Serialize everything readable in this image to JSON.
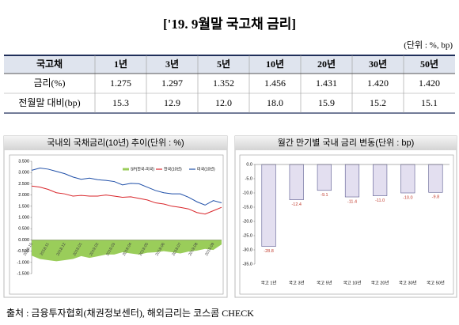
{
  "title": "['19. 9월말 국고채 금리]",
  "unit_note": "(단위 : %, bp)",
  "table": {
    "header": [
      "국고채",
      "1년",
      "3년",
      "5년",
      "10년",
      "20년",
      "30년",
      "50년"
    ],
    "rows": [
      [
        "금리(%)",
        "1.275",
        "1.297",
        "1.352",
        "1.456",
        "1.431",
        "1.420",
        "1.420"
      ],
      [
        "전월말 대비(bp)",
        "15.3",
        "12.9",
        "12.0",
        "18.0",
        "15.9",
        "15.2",
        "15.1"
      ]
    ]
  },
  "chart_data": [
    {
      "type": "line",
      "title": "국내외 국채금리(10년) 추이(단위 : %)",
      "categories": [
        "2018.10",
        null,
        "2018.11",
        null,
        "2018.12",
        null,
        "2019.01",
        null,
        "2019.02",
        null,
        "2019.03",
        null,
        "2019.04",
        null,
        "2019.05",
        null,
        "2019.06",
        null,
        "2019.07",
        null,
        "2019.08",
        null,
        "2019.09",
        null
      ],
      "series": [
        {
          "name": "SP(한국-미국)",
          "color": "#9acd5a",
          "fill": true,
          "values": [
            -0.7,
            -0.85,
            -0.9,
            -0.95,
            -0.9,
            -0.85,
            -0.72,
            -0.8,
            -0.73,
            -0.65,
            -0.65,
            -0.55,
            -0.6,
            -0.65,
            -0.57,
            -0.55,
            -0.5,
            -0.55,
            -0.6,
            -0.52,
            -0.48,
            -0.4,
            -0.45,
            -0.2
          ]
        },
        {
          "name": "한국(10년)",
          "color": "#d9262b",
          "values": [
            2.4,
            2.35,
            2.25,
            2.1,
            2.05,
            1.95,
            1.98,
            1.95,
            1.95,
            2.0,
            1.95,
            1.9,
            1.92,
            1.85,
            1.78,
            1.65,
            1.6,
            1.5,
            1.45,
            1.38,
            1.22,
            1.15,
            1.3,
            1.45
          ]
        },
        {
          "name": "미국(10년)",
          "color": "#1f4fa8",
          "values": [
            3.1,
            3.2,
            3.15,
            3.05,
            2.95,
            2.8,
            2.7,
            2.75,
            2.68,
            2.65,
            2.6,
            2.45,
            2.52,
            2.5,
            2.35,
            2.2,
            2.1,
            2.05,
            2.05,
            1.9,
            1.7,
            1.55,
            1.75,
            1.65
          ]
        }
      ],
      "ylim": [
        -1.5,
        3.5
      ],
      "yticks": [
        {
          "value": 3.5,
          "label": "3.500"
        },
        {
          "value": 3,
          "label": "3.000"
        },
        {
          "value": 2.5,
          "label": "2.500"
        },
        {
          "value": 2,
          "label": "2.000"
        },
        {
          "value": 1.5,
          "label": "1.500"
        },
        {
          "value": 1,
          "label": "1.000"
        },
        {
          "value": 0.5,
          "label": "0.500"
        },
        {
          "value": 0,
          "label": "0.000"
        },
        {
          "value": -0.5,
          "label": "-0.500"
        },
        {
          "value": -1,
          "label": "-1.000"
        },
        {
          "value": -1.5,
          "label": "-1.500"
        }
      ],
      "legend": "top-right"
    },
    {
      "type": "bar",
      "title": "월간 만기별 국내 금리 변동(단위 : bp)",
      "categories": [
        "국고 1년",
        "국고 3년",
        "국고 5년",
        "국고 10년",
        "국고 20년",
        "국고 30년",
        "국고 50년"
      ],
      "values": [
        -28.8,
        -12.4,
        -9.1,
        -11.4,
        -11.0,
        -10.0,
        -9.8
      ],
      "value_labels": [
        "-28.8",
        "-12.4",
        "-9.1",
        "-11.4",
        "-11.0",
        "-10.0",
        "-9.8"
      ],
      "color": "#e3dff0",
      "label_color": "#c0392b",
      "ylim": [
        -35,
        0
      ],
      "yticks": [
        {
          "value": 0,
          "label": "0.0"
        },
        {
          "value": -5,
          "label": "-5.0"
        },
        {
          "value": -10,
          "label": "-10.0"
        },
        {
          "value": -15,
          "label": "-15.0"
        },
        {
          "value": -20,
          "label": "-20.0"
        },
        {
          "value": -25,
          "label": "-25.0"
        },
        {
          "value": -30,
          "label": "-30.0"
        },
        {
          "value": -35,
          "label": "-35.0"
        }
      ]
    }
  ],
  "source": "출처 : 금융투자협회(채권정보센터), 해외금리는 코스콤 CHECK"
}
